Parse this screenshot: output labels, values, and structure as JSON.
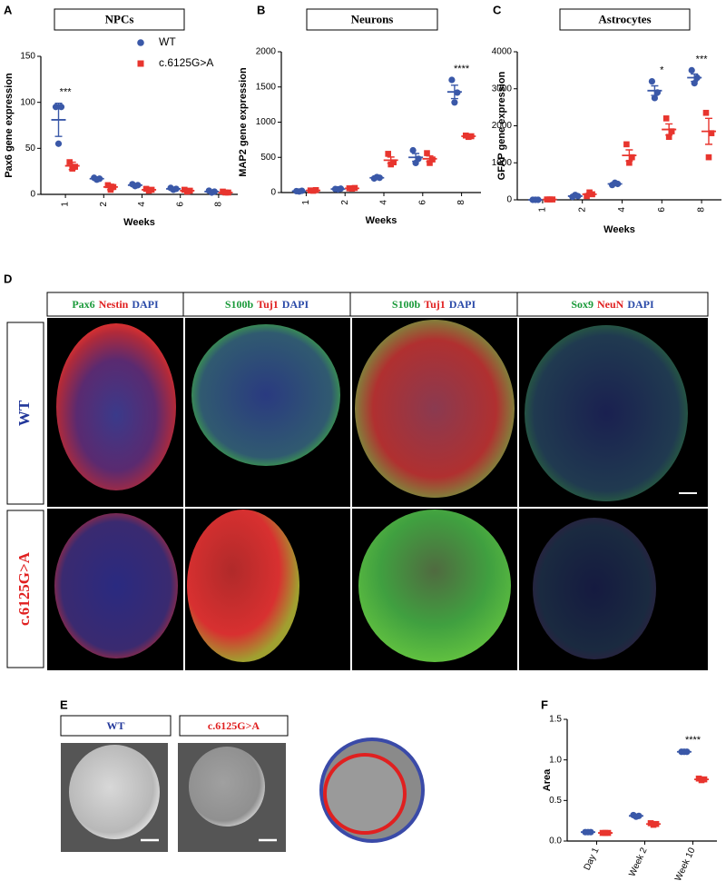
{
  "figure": {
    "panel_letters": [
      "A",
      "B",
      "C",
      "D",
      "E",
      "F"
    ],
    "d_headers": [
      [
        {
          "text": "Pax6",
          "color": "#1a9a3a"
        },
        {
          "text": "Nestin",
          "color": "#e02020"
        },
        {
          "text": "DAPI",
          "color": "#2a4aa8"
        }
      ],
      [
        {
          "text": "S100b",
          "color": "#1a9a3a"
        },
        {
          "text": "Tuj1",
          "color": "#e02020"
        },
        {
          "text": "DAPI",
          "color": "#2a4aa8"
        }
      ],
      [
        {
          "text": "S100b",
          "color": "#1a9a3a"
        },
        {
          "text": "Tuj1",
          "color": "#e02020"
        },
        {
          "text": "DAPI",
          "color": "#2a4aa8"
        }
      ],
      [
        {
          "text": "Sox9",
          "color": "#1a9a3a"
        },
        {
          "text": "NeuN",
          "color": "#e02020"
        },
        {
          "text": "DAPI",
          "color": "#2a4aa8"
        }
      ]
    ],
    "d_rows": [
      {
        "text": "WT",
        "color": "#22379a"
      },
      {
        "text": "c.6125G>A",
        "color": "#e02020"
      }
    ],
    "e_labels": [
      {
        "text": "WT",
        "color": "#22379a"
      },
      {
        "text": "c.6125G>A",
        "color": "#e02020"
      }
    ]
  },
  "chart_data": [
    {
      "type": "dot",
      "title": "NPCs",
      "ylabel": "Pax6 gene expression",
      "xlabel": "Weeks",
      "categories": [
        "1",
        "2",
        "4",
        "6",
        "8"
      ],
      "ylim": [
        0,
        150
      ],
      "yticks": [
        0,
        50,
        100,
        150
      ],
      "annotations": [
        {
          "category": "1",
          "text": "***"
        }
      ],
      "series": [
        {
          "name": "WT",
          "color": "#3a58a8",
          "marker": "circle",
          "values": [
            81,
            17,
            10,
            6,
            3
          ],
          "errors": [
            18,
            2,
            1.5,
            1.5,
            1
          ],
          "points": [
            [
              95,
              95,
              55
            ],
            [
              18,
              17,
              16
            ],
            [
              11,
              10,
              9
            ],
            [
              7,
              6,
              5
            ],
            [
              4,
              3,
              2
            ]
          ]
        },
        {
          "name": "c.6125G>A",
          "color": "#e8352e",
          "marker": "square",
          "values": [
            31,
            8,
            5,
            4,
            2
          ],
          "errors": [
            4,
            3,
            1,
            1,
            0.5
          ],
          "points": [
            [
              35,
              30,
              28
            ],
            [
              10,
              8,
              5
            ],
            [
              6,
              5,
              4
            ],
            [
              5,
              4,
              3
            ],
            [
              3,
              2,
              2
            ]
          ]
        }
      ]
    },
    {
      "type": "dot",
      "title": "Neurons",
      "ylabel": "MAP2 gene expression",
      "xlabel": "Weeks",
      "categories": [
        "1",
        "2",
        "4",
        "6",
        "8"
      ],
      "ylim": [
        0,
        2000
      ],
      "yticks": [
        0,
        500,
        1000,
        1500,
        2000
      ],
      "annotations": [
        {
          "category": "8",
          "text": "****"
        }
      ],
      "series": [
        {
          "color": "#3a58a8",
          "marker": "circle",
          "values": [
            20,
            50,
            210,
            500,
            1430
          ],
          "errors": [
            5,
            5,
            10,
            55,
            95
          ],
          "points": [
            [
              20,
              25,
              15
            ],
            [
              50,
              55,
              45
            ],
            [
              200,
              210,
              220
            ],
            [
              600,
              480,
              420
            ],
            [
              1600,
              1420,
              1280
            ]
          ]
        },
        {
          "color": "#e8352e",
          "marker": "square",
          "values": [
            30,
            60,
            460,
            480,
            800
          ],
          "errors": [
            5,
            5,
            45,
            40,
            6
          ],
          "points": [
            [
              30,
              35,
              25
            ],
            [
              60,
              65,
              55
            ],
            [
              550,
              430,
              400
            ],
            [
              560,
              470,
              420
            ],
            [
              810,
              800,
              790
            ]
          ]
        }
      ]
    },
    {
      "type": "dot",
      "title": "Astrocytes",
      "ylabel": "GFAP gene expression",
      "xlabel": "Weeks",
      "categories": [
        "1",
        "2",
        "4",
        "6",
        "8"
      ],
      "ylim": [
        0,
        4000
      ],
      "yticks": [
        0,
        1000,
        2000,
        3000,
        4000
      ],
      "annotations": [
        {
          "category": "6",
          "text": "*"
        },
        {
          "category": "8",
          "text": "***"
        }
      ],
      "series": [
        {
          "color": "#3a58a8",
          "marker": "circle",
          "values": [
            0,
            100,
            430,
            2950,
            3300
          ],
          "errors": [
            0,
            15,
            20,
            130,
            100
          ],
          "points": [
            [
              0,
              0,
              0
            ],
            [
              80,
              100,
              130
            ],
            [
              400,
              430,
              460
            ],
            [
              3200,
              2900,
              2750
            ],
            [
              3500,
              3300,
              3150
            ]
          ]
        },
        {
          "color": "#e8352e",
          "marker": "square",
          "values": [
            10,
            150,
            1200,
            1900,
            1850
          ],
          "errors": [
            0,
            30,
            150,
            150,
            350
          ],
          "points": [
            [
              10,
              10,
              10
            ],
            [
              100,
              150,
              200
            ],
            [
              1500,
              1150,
              1000
            ],
            [
              2200,
              1850,
              1700
            ],
            [
              2350,
              1800,
              1150
            ]
          ]
        }
      ]
    },
    {
      "type": "dot",
      "ylabel": "Area",
      "categories": [
        "Day 1",
        "Week 2",
        "Week 10"
      ],
      "ylim": [
        0,
        1.5
      ],
      "yticks": [
        {
          "value": 0,
          "label": "0.0"
        },
        0.5,
        {
          "value": 1,
          "label": "1.0"
        },
        1.5
      ],
      "annotations": [
        {
          "category": "Week 10",
          "text": "****"
        }
      ],
      "series": [
        {
          "color": "#3a58a8",
          "marker": "circle",
          "values": [
            0.11,
            0.31,
            1.1
          ],
          "errors": [
            0.005,
            0.01,
            0.005
          ],
          "points": [
            [
              0.11,
              0.11,
              0.11
            ],
            [
              0.32,
              0.31,
              0.3
            ],
            [
              1.1,
              1.1,
              1.1
            ]
          ]
        },
        {
          "color": "#e8352e",
          "marker": "square",
          "values": [
            0.1,
            0.21,
            0.76
          ],
          "errors": [
            0.005,
            0.01,
            0.01
          ],
          "points": [
            [
              0.1,
              0.1,
              0.1
            ],
            [
              0.22,
              0.21,
              0.2
            ],
            [
              0.77,
              0.76,
              0.75
            ]
          ]
        }
      ]
    }
  ]
}
